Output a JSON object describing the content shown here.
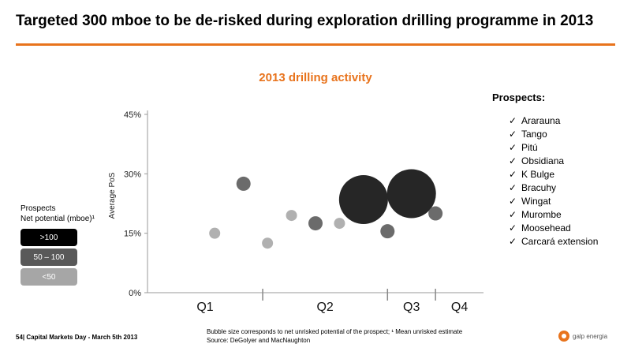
{
  "title": "Targeted 300 mboe to be de-risked during exploration drilling programme in 2013",
  "chart_data": {
    "type": "scatter",
    "title": "2013 drilling activity",
    "xlabel": "",
    "ylabel": "Average PoS",
    "yticks": [
      "0%",
      "15%",
      "30%",
      "45%"
    ],
    "ylim": [
      0,
      45
    ],
    "grid": false,
    "quarters": [
      "Q1",
      "Q2",
      "Q3",
      "Q4"
    ],
    "points": [
      {
        "x": 1.4,
        "y": 15,
        "category": "<50"
      },
      {
        "x": 2.0,
        "y": 27.5,
        "category": "50 – 100"
      },
      {
        "x": 2.5,
        "y": 12.5,
        "category": "<50"
      },
      {
        "x": 3.0,
        "y": 19.5,
        "category": "<50"
      },
      {
        "x": 3.5,
        "y": 17.5,
        "category": "50 – 100"
      },
      {
        "x": 4.0,
        "y": 17.5,
        "category": "<50"
      },
      {
        "x": 4.5,
        "y": 23.5,
        "category": ">100"
      },
      {
        "x": 5.0,
        "y": 15.5,
        "category": "50 – 100"
      },
      {
        "x": 5.5,
        "y": 25,
        "category": ">100"
      },
      {
        "x": 6.0,
        "y": 20,
        "category": "50 – 100"
      }
    ],
    "x_range": [
      0,
      7
    ],
    "quarter_bounds": [
      0,
      2.4,
      5.0,
      6.0,
      7.0
    ],
    "legend_colors": {
      ">100": "#262626",
      "50 – 100": "#6b6b6b",
      "<50": "#b0b0b0"
    },
    "bubble_size_scale": {
      "<50": 7,
      "50 – 100": 9,
      ">100_small": 15,
      ">100_large": 31
    }
  },
  "legend": {
    "heading_line1": "Prospects",
    "heading_line2": "Net potential (mboe)¹",
    "items": [
      {
        "label": ">100",
        "color": "#000000"
      },
      {
        "label": "50 – 100",
        "color": "#595959"
      },
      {
        "label": "<50",
        "color": "#a6a6a6"
      }
    ]
  },
  "prospects": {
    "title": "Prospects:",
    "items": [
      "Ararauna",
      "Tango",
      "Pitú",
      "Obsidiana",
      "K Bulge",
      "Bracuhy",
      "Wingat",
      "Murombe",
      "Moosehead",
      "Carcará extension"
    ]
  },
  "footer": {
    "left": "54| Capital Markets Day - March 5th 2013",
    "note_line1": "Bubble size corresponds to net unrisked potential of the prospect; ¹ Mean unrisked estimate",
    "note_line2": "Source: DeGolyer and MacNaughton",
    "logo_text": "galp energia"
  },
  "colors": {
    "accent": "#e8731c"
  }
}
